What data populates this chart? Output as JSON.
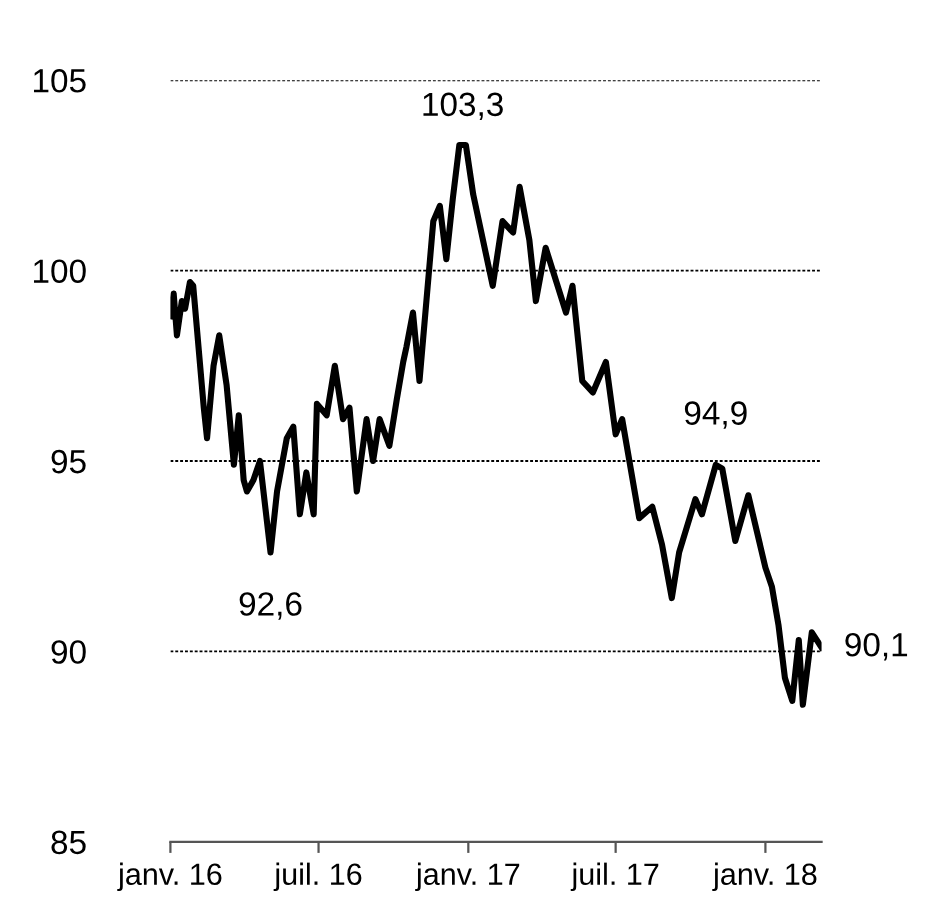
{
  "chart_data": {
    "type": "line",
    "x": [
      "2016-01-01",
      "2016-01-05",
      "2016-01-09",
      "2016-01-15",
      "2016-01-19",
      "2016-01-25",
      "2016-01-29",
      "2016-02-11",
      "2016-02-15",
      "2016-02-23",
      "2016-03-01",
      "2016-03-10",
      "2016-03-19",
      "2016-03-25",
      "2016-03-31",
      "2016-04-04",
      "2016-04-12",
      "2016-04-20",
      "2016-05-03",
      "2016-05-11",
      "2016-05-23",
      "2016-05-31",
      "2016-06-08",
      "2016-06-16",
      "2016-06-25",
      "2016-06-29",
      "2016-07-11",
      "2016-07-21",
      "2016-07-31",
      "2016-08-08",
      "2016-08-17",
      "2016-08-29",
      "2016-09-06",
      "2016-09-14",
      "2016-09-26",
      "2016-10-05",
      "2016-10-13",
      "2016-10-17",
      "2016-10-25",
      "2016-11-02",
      "2016-11-19",
      "2016-11-27",
      "2016-12-05",
      "2016-12-13",
      "2016-12-21",
      "2016-12-29",
      "2017-01-07",
      "2017-01-19",
      "2017-01-31",
      "2017-02-12",
      "2017-02-25",
      "2017-03-05",
      "2017-03-17",
      "2017-03-25",
      "2017-04-06",
      "2017-05-01",
      "2017-05-09",
      "2017-05-21",
      "2017-06-03",
      "2017-06-19",
      "2017-07-01",
      "2017-07-09",
      "2017-07-30",
      "2017-08-15",
      "2017-08-27",
      "2017-09-08",
      "2017-09-17",
      "2017-10-07",
      "2017-10-15",
      "2017-11-01",
      "2017-11-09",
      "2017-11-25",
      "2017-12-11",
      "2018-01-01",
      "2018-01-09",
      "2018-01-17",
      "2018-01-25",
      "2018-02-03",
      "2018-02-11",
      "2018-02-16",
      "2018-02-27",
      "2018-03-11"
    ],
    "series": [
      {
        "color": "#000000",
        "values": [
          98.8,
          99.4,
          98.3,
          99.2,
          99.0,
          99.7,
          99.6,
          96.4,
          95.6,
          97.5,
          98.3,
          97.0,
          94.9,
          96.2,
          94.5,
          94.2,
          94.5,
          95.0,
          92.6,
          94.2,
          95.6,
          95.9,
          93.6,
          94.7,
          93.6,
          96.5,
          96.2,
          97.5,
          96.1,
          96.4,
          94.2,
          96.1,
          95.0,
          96.1,
          95.4,
          96.6,
          97.6,
          98.0,
          98.9,
          97.1,
          101.3,
          101.7,
          100.3,
          101.9,
          103.3,
          103.3,
          102.0,
          100.8,
          99.6,
          101.3,
          101.0,
          102.2,
          100.8,
          99.2,
          100.6,
          98.9,
          99.6,
          97.1,
          96.8,
          97.6,
          95.7,
          96.1,
          93.5,
          93.8,
          92.8,
          91.4,
          92.6,
          94.0,
          93.6,
          94.9,
          94.8,
          92.9,
          94.1,
          92.2,
          91.7,
          90.7,
          89.3,
          88.7,
          90.3,
          88.6,
          90.5,
          90.1
        ]
      }
    ],
    "xlim": [
      "2016-01-01",
      "2018-03-11"
    ],
    "xticks": [
      {
        "value": "2016-01-01",
        "label": "janv. 16"
      },
      {
        "value": "2016-07-01",
        "label": "juil. 16"
      },
      {
        "value": "2017-01-01",
        "label": "janv. 17"
      },
      {
        "value": "2017-07-01",
        "label": "juil. 17"
      },
      {
        "value": "2018-01-01",
        "label": "janv. 18"
      }
    ],
    "ylim": [
      85,
      105
    ],
    "yticks": [
      85,
      90,
      95,
      100,
      105
    ],
    "grid": "y",
    "marker": "none",
    "line_style": "solid",
    "annotations": [
      {
        "text": "103,3",
        "x": "2016-12-25",
        "y": 103.3
      },
      {
        "text": "92,6",
        "x": "2016-05-03",
        "y": 92.6
      },
      {
        "text": "94,9",
        "x": "2017-11-01",
        "y": 94.9
      },
      {
        "text": "90,1",
        "x": "2018-03-11",
        "y": 90.1
      }
    ]
  }
}
